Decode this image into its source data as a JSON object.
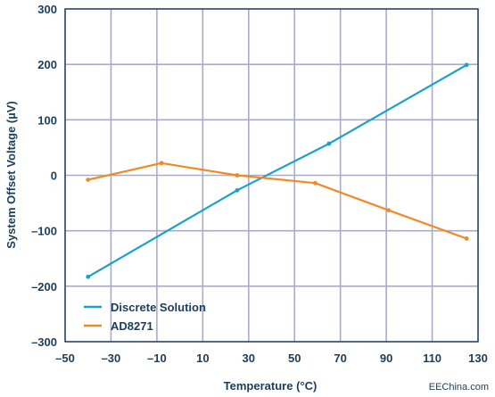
{
  "chart_data": {
    "type": "line",
    "xlabel": "Temperature (°C)",
    "ylabel": "System Offset Voltage (µV)",
    "xlim": [
      -50,
      130
    ],
    "ylim": [
      -300,
      300
    ],
    "x_ticks": [
      -50,
      -30,
      -10,
      10,
      30,
      50,
      70,
      90,
      110,
      130
    ],
    "x_tick_labels": [
      "–50",
      "–30",
      "–10",
      "10",
      "30",
      "50",
      "70",
      "90",
      "110",
      "130"
    ],
    "y_ticks": [
      300,
      200,
      100,
      0,
      -100,
      -200,
      -300
    ],
    "y_tick_labels": [
      "300",
      "200",
      "100",
      "0",
      "–100",
      "–200",
      "–300"
    ],
    "grid": true,
    "legend_position": "bottom-left",
    "series": [
      {
        "name": "Discrete Solution",
        "color": "#1aa3c9",
        "x": [
          -40,
          25,
          65,
          125
        ],
        "y": [
          -183,
          -27,
          57,
          199
        ]
      },
      {
        "name": "AD8271",
        "color": "#f08a24",
        "x": [
          -40,
          -8,
          25,
          59,
          91,
          125
        ],
        "y": [
          -8,
          22,
          0,
          -14,
          -63,
          -114
        ]
      }
    ]
  },
  "watermark": "EEChina.com",
  "colors": {
    "axis": "#1c3d5a",
    "grid": "#a9abc9"
  }
}
